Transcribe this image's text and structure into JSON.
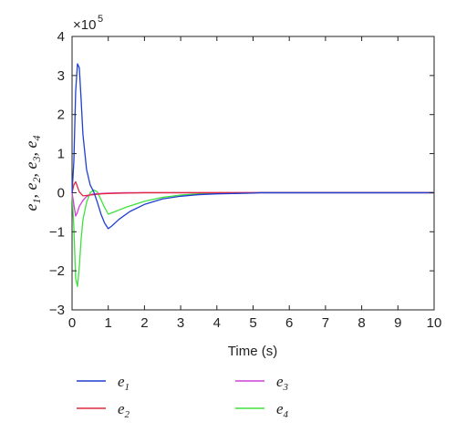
{
  "chart_data": {
    "type": "line",
    "xlabel": "Time (s)",
    "ylabel_parts": [
      {
        "base": "e",
        "sub": "1",
        "sep": ", "
      },
      {
        "base": "e",
        "sub": "2",
        "sep": ", "
      },
      {
        "base": "e",
        "sub": "3",
        "sep": ", "
      },
      {
        "base": "e",
        "sub": "4",
        "sep": ""
      }
    ],
    "multiplier": {
      "base": "×10",
      "exp": "5"
    },
    "xlim": [
      0,
      10
    ],
    "ylim": [
      -3,
      4
    ],
    "xticks": [
      0,
      1,
      2,
      3,
      4,
      5,
      6,
      7,
      8,
      9,
      10
    ],
    "yticks": [
      -3,
      -2,
      -1,
      0,
      1,
      2,
      3,
      4
    ],
    "grid": false,
    "legend_placement": "below",
    "series": [
      {
        "name": "e",
        "sub": "1",
        "color": "#1f3fd1",
        "x": [
          0,
          0.05,
          0.1,
          0.15,
          0.2,
          0.25,
          0.3,
          0.4,
          0.5,
          0.6,
          0.7,
          0.8,
          0.9,
          1.0,
          1.1,
          1.3,
          1.6,
          2.0,
          2.5,
          3.0,
          3.5,
          4.0,
          4.5,
          5.0,
          5.2,
          6,
          8,
          10
        ],
        "y": [
          0,
          0.8,
          2.6,
          3.3,
          3.2,
          2.4,
          1.5,
          0.6,
          0.2,
          0.02,
          -0.25,
          -0.55,
          -0.78,
          -0.92,
          -0.85,
          -0.68,
          -0.48,
          -0.3,
          -0.16,
          -0.09,
          -0.05,
          -0.03,
          -0.02,
          -0.01,
          0,
          0,
          0,
          0
        ]
      },
      {
        "name": "e",
        "sub": "2",
        "color": "#e0283c",
        "x": [
          0,
          0.05,
          0.1,
          0.15,
          0.2,
          0.3,
          0.5,
          0.8,
          1.0,
          1.5,
          2,
          3,
          5,
          10
        ],
        "y": [
          0,
          0.2,
          0.28,
          0.15,
          0.02,
          -0.08,
          -0.06,
          -0.03,
          -0.02,
          -0.01,
          0,
          0,
          0,
          0
        ]
      },
      {
        "name": "e",
        "sub": "3",
        "color": "#d23fd6",
        "x": [
          0,
          0.05,
          0.1,
          0.15,
          0.2,
          0.3,
          0.4,
          0.5,
          0.6,
          0.8,
          1.0,
          1.5,
          2,
          3,
          10
        ],
        "y": [
          0,
          -0.3,
          -0.6,
          -0.5,
          -0.35,
          -0.2,
          -0.1,
          -0.05,
          -0.03,
          -0.02,
          -0.01,
          0,
          0,
          0,
          0
        ]
      },
      {
        "name": "e",
        "sub": "4",
        "color": "#3fe13f",
        "x": [
          0,
          0.05,
          0.1,
          0.15,
          0.2,
          0.25,
          0.3,
          0.4,
          0.5,
          0.6,
          0.7,
          0.8,
          0.9,
          1.0,
          1.2,
          1.5,
          2.0,
          2.5,
          3.0,
          3.5,
          4.0,
          5.0,
          6,
          8,
          10
        ],
        "y": [
          0,
          -0.9,
          -2.2,
          -2.4,
          -1.9,
          -1.2,
          -0.7,
          -0.25,
          0.0,
          0.07,
          0.02,
          -0.18,
          -0.38,
          -0.55,
          -0.48,
          -0.37,
          -0.22,
          -0.12,
          -0.06,
          -0.03,
          -0.01,
          0,
          0,
          0,
          0
        ]
      }
    ]
  }
}
